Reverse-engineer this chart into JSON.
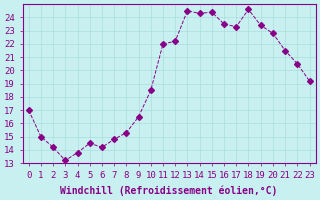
{
  "x": [
    0,
    1,
    2,
    3,
    4,
    5,
    6,
    7,
    8,
    9,
    10,
    11,
    12,
    13,
    14,
    15,
    16,
    17,
    18,
    19,
    20,
    21,
    22,
    23
  ],
  "y": [
    17.0,
    15.0,
    14.2,
    13.2,
    13.8,
    14.5,
    14.2,
    14.8,
    15.3,
    16.5,
    18.5,
    22.0,
    22.2,
    24.5,
    24.3,
    24.4,
    23.5,
    23.3,
    24.6,
    23.4,
    22.8,
    21.5,
    20.5,
    19.2
  ],
  "line_color": "#880088",
  "marker": "D",
  "marker_size": 3,
  "linewidth": 0.7,
  "linestyle": "--",
  "bg_color": "#c8f0f0",
  "grid_color": "#aadddd",
  "xlabel": "Windchill (Refroidissement éolien,°C)",
  "xlim": [
    -0.5,
    23.5
  ],
  "ylim": [
    13,
    25
  ],
  "yticks": [
    13,
    14,
    15,
    16,
    17,
    18,
    19,
    20,
    21,
    22,
    23,
    24
  ],
  "xticks": [
    0,
    1,
    2,
    3,
    4,
    5,
    6,
    7,
    8,
    9,
    10,
    11,
    12,
    13,
    14,
    15,
    16,
    17,
    18,
    19,
    20,
    21,
    22,
    23
  ],
  "tick_label_fontsize": 6.5,
  "xlabel_fontsize": 7,
  "spine_color": "#880088"
}
